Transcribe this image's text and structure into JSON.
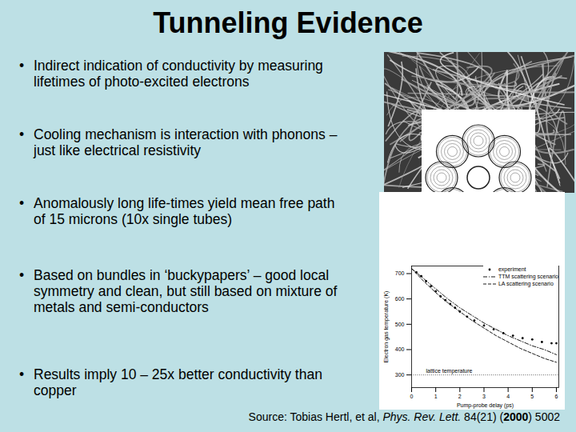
{
  "header": {
    "title": "Tunneling Evidence"
  },
  "bullets": [
    "Indirect indication of conductivity by measuring lifetimes of photo-excited electrons",
    "Cooling mechanism is interaction with phonons – just like electrical resistivity",
    "Anomalously long life-times yield mean free path of 15 microns (10x single tubes)",
    "Based on bundles in ‘buckypapers’ – good local symmetry and clean, but still based on mixture of metals and semi-conductors",
    "Results imply 10 – 25x better conductivity than copper"
  ],
  "source": {
    "parts": [
      {
        "text": "Source: Tobias Hertl, et al, ",
        "style": "normal"
      },
      {
        "text": "Phys. Rev. Lett.",
        "style": "italic"
      },
      {
        "text": " 84(21) (",
        "style": "normal"
      },
      {
        "text": "2000",
        "style": "bold"
      },
      {
        "text": ") 5002",
        "style": "normal"
      }
    ]
  },
  "chart_data": {
    "type": "line",
    "x_label": "Pump-probe delay (ps)",
    "y_label": "Electron gas temperature (K)",
    "xlim": [
      0,
      6.1
    ],
    "xticks": [
      0,
      1,
      2,
      3,
      4,
      5,
      6
    ],
    "ylim": [
      250,
      730
    ],
    "yticks": [
      300,
      400,
      500,
      600,
      700
    ],
    "series": [
      {
        "name": "experiment",
        "type": "scatter",
        "marker": "dot",
        "color": "#000000",
        "x": [
          0.2,
          0.4,
          0.6,
          0.8,
          1.0,
          1.2,
          1.4,
          1.6,
          1.8,
          2.0,
          2.3,
          2.6,
          3.0,
          3.4,
          3.8,
          4.2,
          4.6,
          5.0,
          5.4,
          5.8,
          6.0
        ],
        "values": [
          705,
          690,
          670,
          650,
          630,
          610,
          595,
          580,
          565,
          550,
          530,
          515,
          495,
          480,
          465,
          455,
          445,
          440,
          430,
          425,
          425
        ]
      },
      {
        "name": "TTM scattering scenario",
        "type": "line",
        "line_style": "dashdot",
        "color": "#000000",
        "x": [
          0,
          0.5,
          1,
          1.5,
          2,
          2.5,
          3,
          3.5,
          4,
          4.5,
          5,
          5.5,
          6
        ],
        "values": [
          720,
          680,
          640,
          600,
          565,
          535,
          505,
          480,
          455,
          435,
          415,
          400,
          380
        ]
      },
      {
        "name": "LA scattering scenario",
        "type": "line",
        "line_style": "dashed",
        "color": "#000000",
        "x": [
          0,
          0.5,
          1,
          1.5,
          2,
          2.5,
          3,
          3.5,
          4,
          4.5,
          5,
          5.5,
          6
        ],
        "values": [
          720,
          670,
          625,
          585,
          550,
          515,
          485,
          455,
          430,
          405,
          385,
          365,
          350
        ]
      }
    ],
    "annotations": [
      {
        "text": "lattice temperature",
        "y": 300
      }
    ]
  }
}
